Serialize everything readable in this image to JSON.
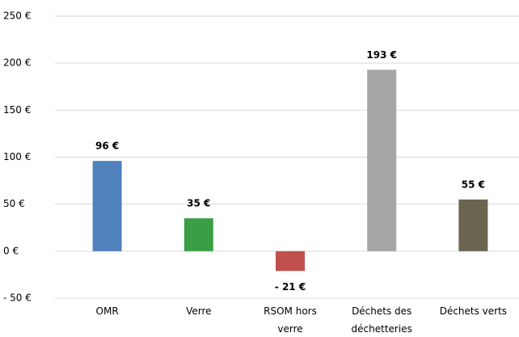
{
  "chart_data": {
    "type": "bar",
    "categories": [
      "OMR",
      "Verre",
      "RSOM hors verre",
      "Déchets des déchetteries",
      "Déchets verts"
    ],
    "values": [
      96,
      35,
      -21,
      193,
      55
    ],
    "value_labels": [
      "96 €",
      "35 €",
      "- 21 €",
      "193 €",
      "55 €"
    ],
    "colors": [
      "#4f81bd",
      "#3a9f44",
      "#c0504d",
      "#a6a6a6",
      "#6b6450"
    ],
    "ylim": [
      -50,
      250
    ],
    "yticks": [
      {
        "value": -50,
        "label": "- 50 €"
      },
      {
        "value": 0,
        "label": "0 €"
      },
      {
        "value": 50,
        "label": "50 €"
      },
      {
        "value": 100,
        "label": "100 €"
      },
      {
        "value": 150,
        "label": "150 €"
      },
      {
        "value": 200,
        "label": "200 €"
      },
      {
        "value": 250,
        "label": "250 €"
      }
    ],
    "grid": true
  }
}
